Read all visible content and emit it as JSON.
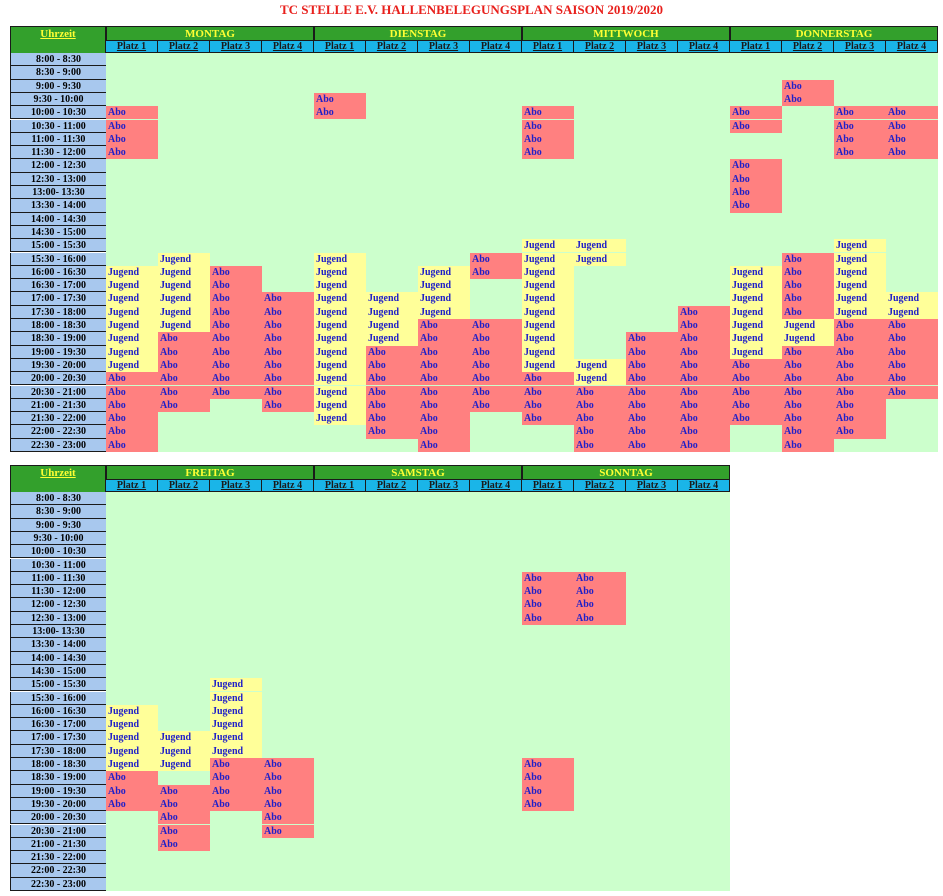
{
  "title": "TC STELLE E.V. HALLENBELEGUNGSPLAN SAISON 2019/2020",
  "uhrzeit_label": "Uhrzeit",
  "court_labels": [
    "Platz 1",
    "Platz 2",
    "Platz 3",
    "Platz 4"
  ],
  "times": [
    "8:00 - 8:30",
    "8:30 - 9:00",
    "9:00 - 9:30",
    "9:30 - 10:00",
    "10:00 - 10:30",
    "10:30 - 11:00",
    "11:00 - 11:30",
    "11:30 - 12:00",
    "12:00 - 12:30",
    "12:30 - 13:00",
    "13:00- 13:30",
    "13:30 - 14:00",
    "14:00 - 14:30",
    "14:30 - 15:00",
    "15:00 - 15:30",
    "15:30 - 16:00",
    "16:00 - 16:30",
    "16:30 - 17:00",
    "17:00 - 17:30",
    "17:30 - 18:00",
    "18:00 - 18:30",
    "18:30 - 19:00",
    "19:00 - 19:30",
    "19:30 - 20:00",
    "20:00 - 20:30",
    "20:30 - 21:00",
    "21:00 - 21:30",
    "21:30 - 22:00",
    "22:00 - 22:30",
    "22:30 - 23:00"
  ],
  "legend_codes": {
    "A": "Abo",
    "J": "Jugend"
  },
  "colors": {
    "abo": "#ff8080",
    "jugend": "#ffff99",
    "free": "#ccffcc",
    "day_header": "#33a02c",
    "court_header": "#1ab5e8",
    "time_col": "#a8c8ee",
    "title": "#e8201c"
  },
  "blocks": [
    {
      "days": [
        {
          "name": "MONTAG",
          "courts": [
            "....AAAA........JJJJJJJJAAAAAA",
            "...............JJJJJJAAAAAA...",
            "................AAAAAAAAAA....",
            "..................AAAAAAAAA..."
          ]
        },
        {
          "name": "DIENSTAG",
          "courts": [
            "...AA..........JJJJJJJJJJJJJ..",
            "..................JJJJAAAAAAA.",
            "................JJJJAAAAAAAAAA",
            "...............AA...AAAAAAA..."
          ]
        },
        {
          "name": "MITTWOCH",
          "courts": [
            "....AAAA......JJJJJJJJJJAAAA..",
            "..............JJ.......JJAAAAA",
            ".....................AAAAAAAAA",
            "...................AAAAAAAAAAA"
          ]
        },
        {
          "name": "DONNERSTAG",
          "courts": [
            "....AA..AAAA....JJJJJJJAAAAA..",
            "..AA...........AAAAAJJAAAAAAAA",
            "....AAAA......JJJJJJAAAAAAAAA.",
            "....AAAA..........JJAAAAAA...."
          ]
        }
      ]
    },
    {
      "days": [
        {
          "name": "FREITAG",
          "courts": [
            "................JJJJJAAA......",
            "..................JJJ.AAAAA...",
            "..............JJJJJJAAAA......",
            "....................AAAAAA...."
          ]
        },
        {
          "name": "SAMSTAG",
          "courts": [
            "..............................",
            "..............................",
            "..............................",
            ".............................."
          ]
        },
        {
          "name": "SONNTAG",
          "courts": [
            "......AAAA..........AAAA......",
            "......AAAA....................",
            "..............................",
            ".............................."
          ]
        }
      ]
    }
  ]
}
